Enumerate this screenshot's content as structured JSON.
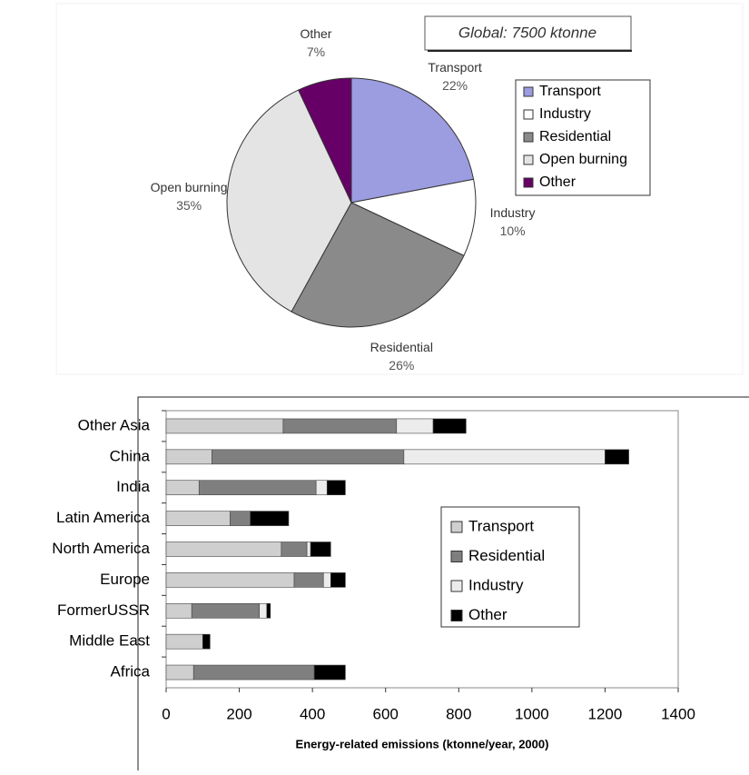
{
  "chart_data": [
    {
      "type": "pie",
      "annotation": "Global: 7500 ktonne",
      "categories": [
        "Transport",
        "Industry",
        "Residential",
        "Open burning",
        "Other"
      ],
      "values": [
        22,
        10,
        26,
        35,
        7
      ],
      "value_labels": [
        "22%",
        "10%",
        "26%",
        "35%",
        "7%"
      ],
      "colors": [
        "#9c9ce0",
        "#ffffff",
        "#8a8a8a",
        "#e4e4e4",
        "#660066"
      ],
      "legend": "upper right"
    },
    {
      "type": "stacked-barh",
      "xlabel": "Energy-related emissions (ktonne/year, 2000)",
      "categories": [
        "Other Asia",
        "China",
        "India",
        "Latin America",
        "North America",
        "Europe",
        "FormerUSSR",
        "Middle East",
        "Africa"
      ],
      "series": [
        {
          "name": "Transport",
          "color": "#cfcfcf",
          "values": [
            320,
            125,
            90,
            175,
            315,
            350,
            70,
            100,
            75
          ]
        },
        {
          "name": "Residential",
          "color": "#7f7f7f",
          "values": [
            310,
            525,
            320,
            55,
            70,
            80,
            185,
            0,
            330
          ]
        },
        {
          "name": "Industry",
          "color": "#ececec",
          "values": [
            100,
            550,
            30,
            0,
            10,
            20,
            20,
            0,
            0
          ]
        },
        {
          "name": "Other",
          "color": "#000000",
          "values": [
            90,
            65,
            50,
            105,
            55,
            40,
            10,
            20,
            85
          ]
        }
      ],
      "xlim": [
        0,
        1400
      ],
      "xticks": [
        0,
        200,
        400,
        600,
        800,
        1000,
        1200,
        1400
      ],
      "legend": "center right"
    }
  ]
}
